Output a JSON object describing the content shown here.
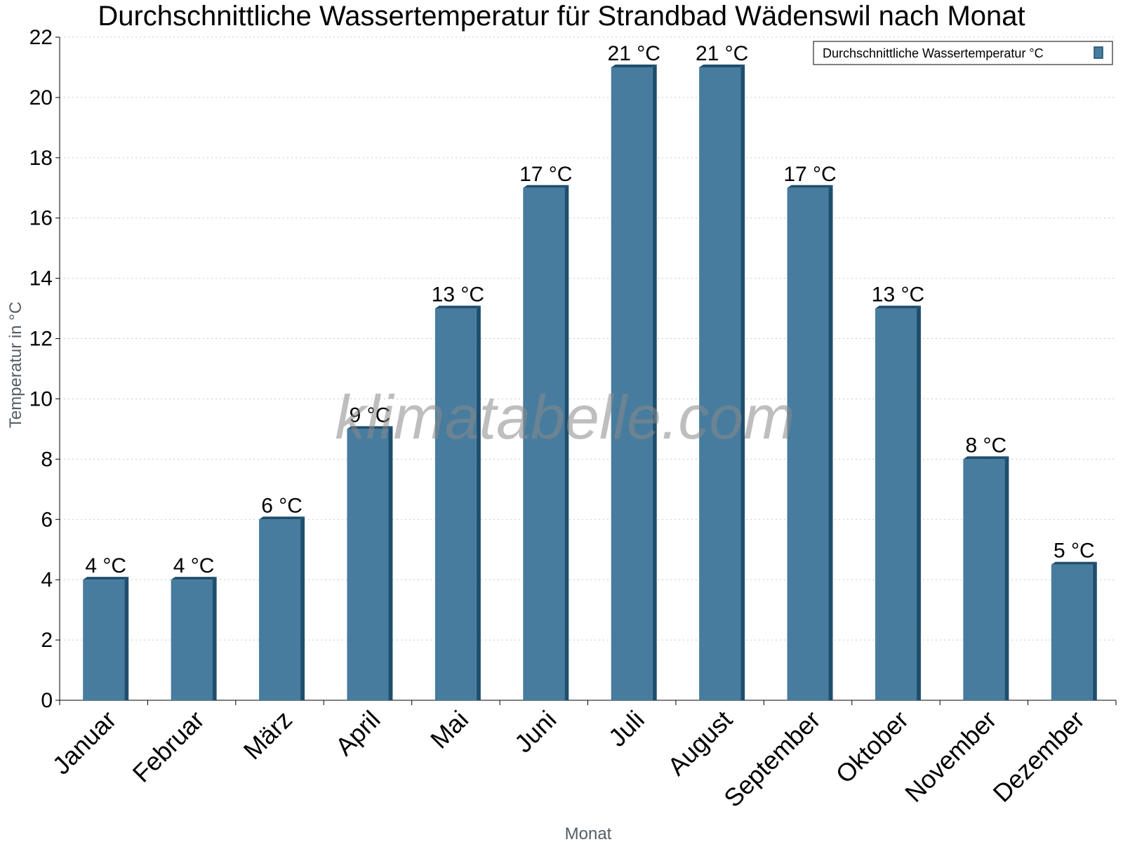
{
  "chart_data": {
    "type": "bar",
    "title": "Durchschnittliche Wassertemperatur für Strandbad Wädenswil nach Monat",
    "xlabel": "Monat",
    "ylabel": "Temperatur in °C",
    "ylim": [
      0,
      22
    ],
    "yticks": [
      0,
      2,
      4,
      6,
      8,
      10,
      12,
      14,
      16,
      18,
      20,
      22
    ],
    "grid": true,
    "legend_position": "top-right",
    "categories": [
      "Januar",
      "Februar",
      "März",
      "April",
      "Mai",
      "Juni",
      "Juli",
      "August",
      "September",
      "Oktober",
      "November",
      "Dezember"
    ],
    "series": [
      {
        "name": "Durchschnittliche Wassertemperatur °C",
        "color": "#477c9e",
        "values": [
          4,
          4,
          6,
          9,
          13,
          17,
          21,
          21,
          17,
          13,
          8,
          4.5
        ],
        "labels": [
          "4 °C",
          "4 °C",
          "6 °C",
          "9 °C",
          "13 °C",
          "17 °C",
          "21 °C",
          "21 °C",
          "17 °C",
          "13 °C",
          "8 °C",
          "5 °C"
        ]
      }
    ]
  },
  "watermark": "klimatabelle.com",
  "colors": {
    "bar_front": "#477c9e",
    "bar_side": "#1f4e6e",
    "bar_top": "#1f4e6e"
  }
}
